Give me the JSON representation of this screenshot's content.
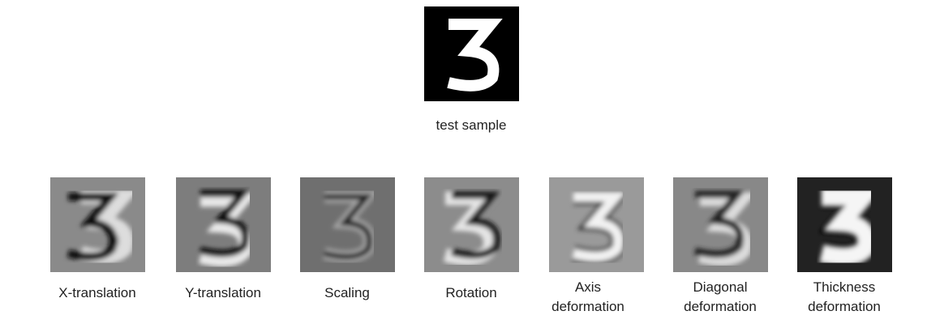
{
  "figure": {
    "test_sample": {
      "caption": "test sample"
    },
    "panels": [
      {
        "caption": "X-translation"
      },
      {
        "caption": "Y-translation"
      },
      {
        "caption": "Scaling"
      },
      {
        "caption": "Rotation"
      },
      {
        "caption": "Axis deformation"
      },
      {
        "caption": "Diagonal deformation"
      },
      {
        "caption": "Thickness deformation"
      }
    ]
  }
}
